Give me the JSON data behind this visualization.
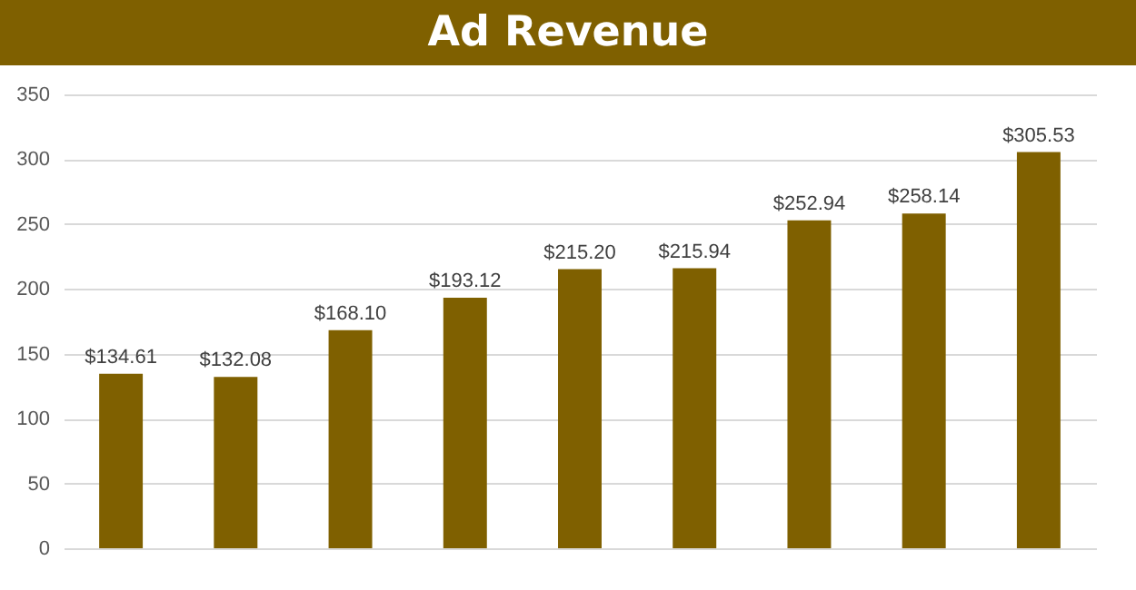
{
  "chart_data": {
    "type": "bar",
    "title": "Ad Revenue",
    "categories": [
      null,
      null,
      null,
      null,
      null,
      null,
      null,
      null,
      null
    ],
    "values": [
      134.61,
      132.08,
      168.1,
      193.12,
      215.2,
      215.94,
      252.94,
      258.14,
      305.53
    ],
    "value_labels": [
      "$134.61",
      "$132.08",
      "$168.10",
      "$193.12",
      "$215.20",
      "$215.94",
      "$252.94",
      "$258.14",
      "$305.53"
    ],
    "color": "#7f6000",
    "ylim": [
      0,
      350
    ],
    "yticks": [
      0,
      50,
      100,
      150,
      200,
      250,
      300,
      350
    ],
    "grid": true
  }
}
